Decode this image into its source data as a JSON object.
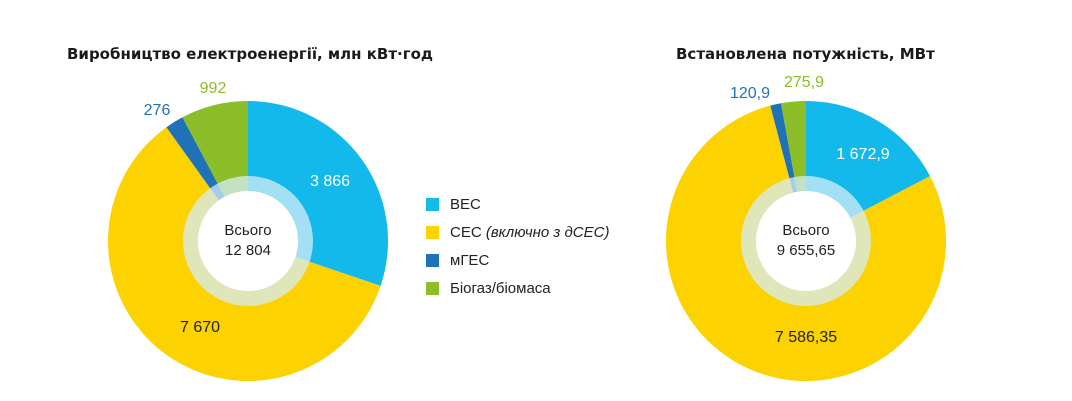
{
  "colors": {
    "ves": "#12b9ea",
    "ses": "#fcd200",
    "mges": "#1f72b8",
    "bio": "#8cbe2a",
    "center_ring": "#d6eef8",
    "label_dark": "#222222",
    "label_light": "#ffffff"
  },
  "legend": {
    "items": [
      {
        "label": "ВЕС",
        "color_key": "ves"
      },
      {
        "label": "СЕС ",
        "label_italic": "(включно з дСЕС)",
        "color_key": "ses"
      },
      {
        "label": "мГЕС",
        "color_key": "mges"
      },
      {
        "label": "Біогаз/біомаса",
        "color_key": "bio"
      }
    ]
  },
  "chart_data": [
    {
      "type": "pie",
      "title": "Виробництво електроенергії, млн кВт·год",
      "center_label": "Всього",
      "center_value": "12 804",
      "categories": [
        "ВЕС",
        "СЕС (включно з дСЕС)",
        "мГЕС",
        "Біогаз/біомаса"
      ],
      "values": [
        3866,
        7670,
        276,
        992
      ],
      "value_labels": [
        "3 866",
        "7 670",
        "276",
        "992"
      ]
    },
    {
      "type": "pie",
      "title": "Встановлена потужність, МВт",
      "center_label": "Всього",
      "center_value": "9 655,65",
      "categories": [
        "ВЕС",
        "СЕС (включно з дСЕС)",
        "мГЕС",
        "Біогаз/біомаса"
      ],
      "values": [
        1672.9,
        7586.35,
        120.9,
        275.9
      ],
      "value_labels": [
        "1 672,9",
        "7 586,35",
        "120,9",
        "275,9"
      ]
    }
  ]
}
